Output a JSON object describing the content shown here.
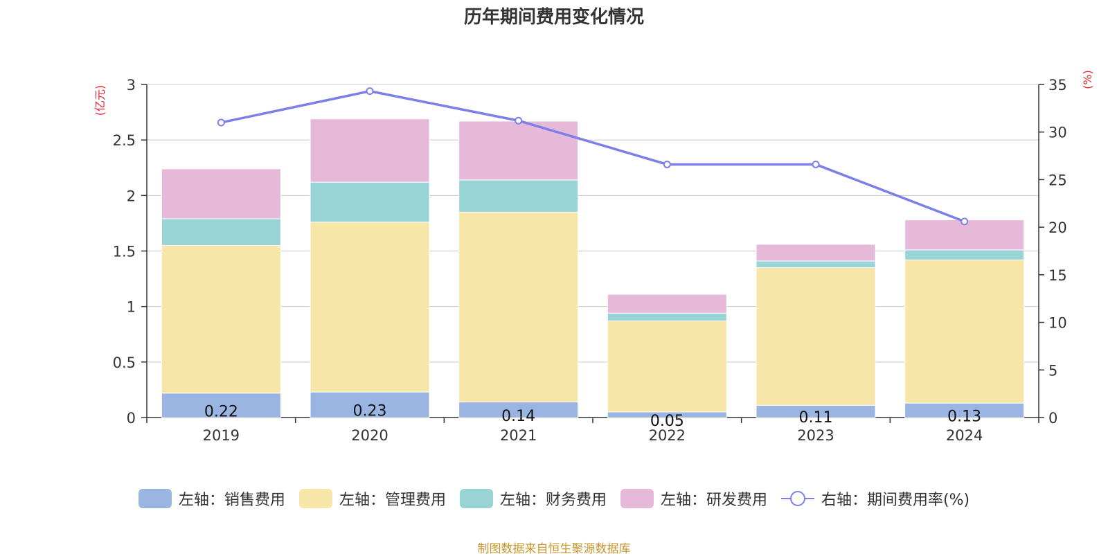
{
  "chart_data": {
    "type": "bar",
    "title": "历年期间费用变化情况",
    "categories": [
      "2019",
      "2020",
      "2021",
      "2022",
      "2023",
      "2024"
    ],
    "y_left_unit": "(亿元)",
    "y_right_unit": "(%)",
    "y_left_ticks": [
      "0",
      "0.5",
      "1",
      "1.5",
      "2",
      "2.5",
      "3"
    ],
    "y_right_ticks": [
      "0",
      "5",
      "10",
      "15",
      "20",
      "25",
      "30",
      "35"
    ],
    "ylim_left": [
      0,
      3
    ],
    "ylim_right": [
      0,
      35
    ],
    "stacked": true,
    "grid": true,
    "legend_position": "bottom",
    "series": [
      {
        "name": "左轴：销售费用",
        "axis": "left",
        "type": "bar",
        "color": "#9ab5e1",
        "values": [
          0.22,
          0.23,
          0.14,
          0.05,
          0.11,
          0.13
        ],
        "labels": [
          "0.22",
          "0.23",
          "0.14",
          "0.05",
          "0.11",
          "0.13"
        ]
      },
      {
        "name": "左轴：管理费用",
        "axis": "left",
        "type": "bar",
        "color": "#f7e6a8",
        "values": [
          1.33,
          1.53,
          1.71,
          0.82,
          1.24,
          1.29
        ]
      },
      {
        "name": "左轴：财务费用",
        "axis": "left",
        "type": "bar",
        "color": "#98d4d6",
        "values": [
          0.24,
          0.36,
          0.29,
          0.07,
          0.06,
          0.09
        ]
      },
      {
        "name": "左轴：研发费用",
        "axis": "left",
        "type": "bar",
        "color": "#e7b9d9",
        "values": [
          0.45,
          0.57,
          0.53,
          0.17,
          0.15,
          0.27
        ]
      },
      {
        "name": "右轴：期间费用率(%)",
        "axis": "right",
        "type": "line",
        "color": "#7b7fe8",
        "values": [
          31.0,
          34.3,
          31.2,
          26.6,
          26.6,
          20.6
        ]
      }
    ],
    "source": "制图数据来自恒生聚源数据库"
  }
}
